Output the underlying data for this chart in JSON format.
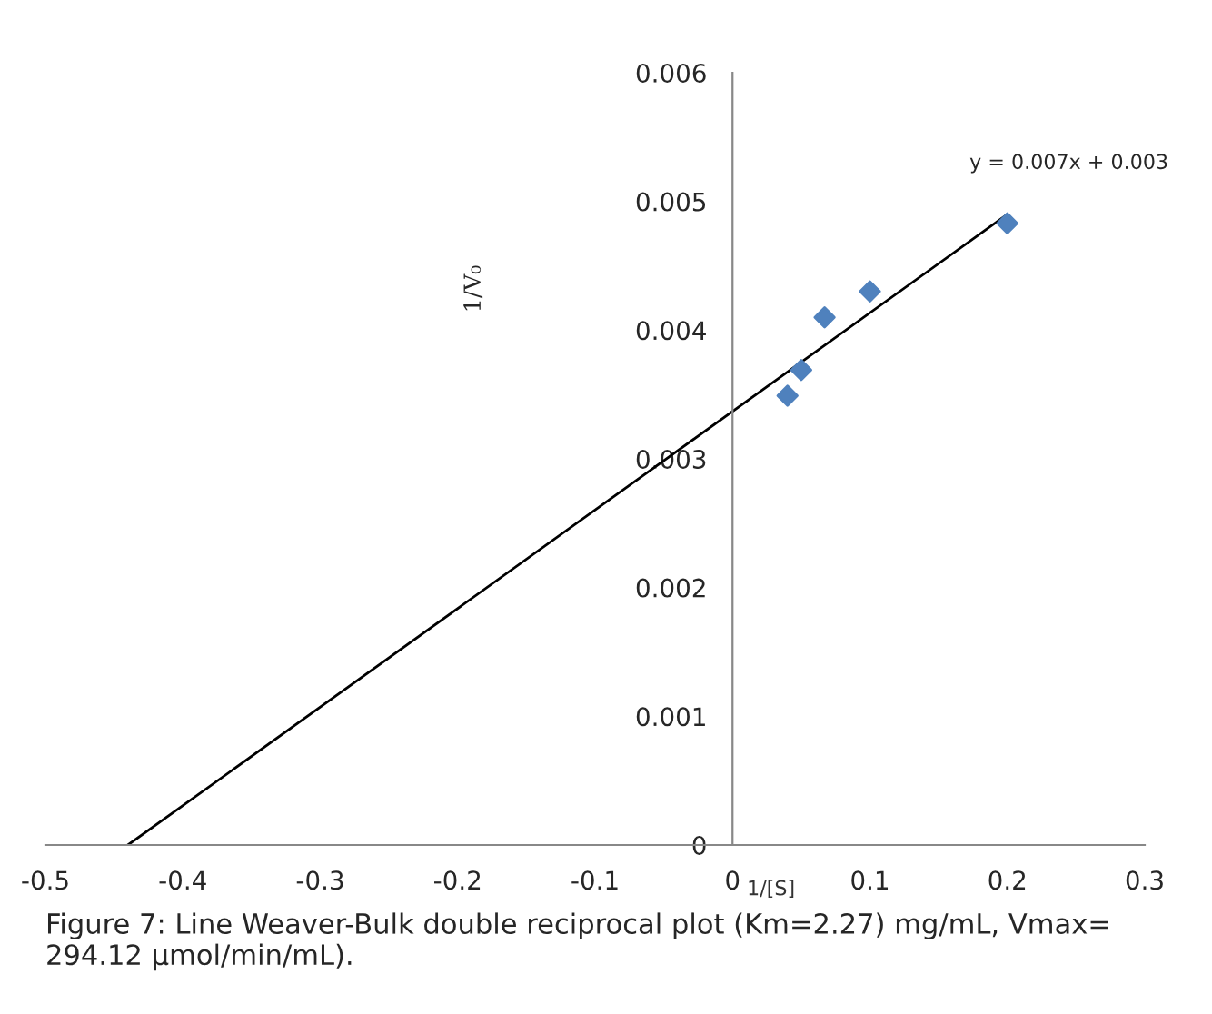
{
  "chart_data": {
    "type": "scatter",
    "xlabel": "1/[S]",
    "ylabel": "1/V₀",
    "xlim": [
      -0.5,
      0.3
    ],
    "xticks": [
      -0.5,
      -0.4,
      -0.3,
      -0.2,
      -0.1,
      0,
      0.1,
      0.2,
      0.3
    ],
    "ylim": [
      0,
      0.006
    ],
    "yticks": [
      0,
      0.001,
      0.002,
      0.003,
      0.004,
      0.005,
      0.006
    ],
    "marker": "diamond",
    "grid": false,
    "legend": false,
    "series": [
      {
        "color": "#4f81bd",
        "x": [
          0.04,
          0.05,
          0.067,
          0.1,
          0.2
        ],
        "values": [
          0.00349,
          0.00369,
          0.0041,
          0.0043,
          0.00483
        ]
      },
      {
        "type": "line",
        "color": "#000000",
        "x": [
          -0.44,
          0.2
        ],
        "values": [
          0,
          0.0049
        ],
        "marker": "none"
      }
    ],
    "annotations": [
      {
        "text": "y = 0.007x + 0.003",
        "x": 0.2,
        "y": 0.0049
      },
      "Figure 7: Line Weaver-Bulk double reciprocal plot (Km=2.27) mg/mL, Vmax= 294.12 µmol/min/mL)."
    ]
  }
}
